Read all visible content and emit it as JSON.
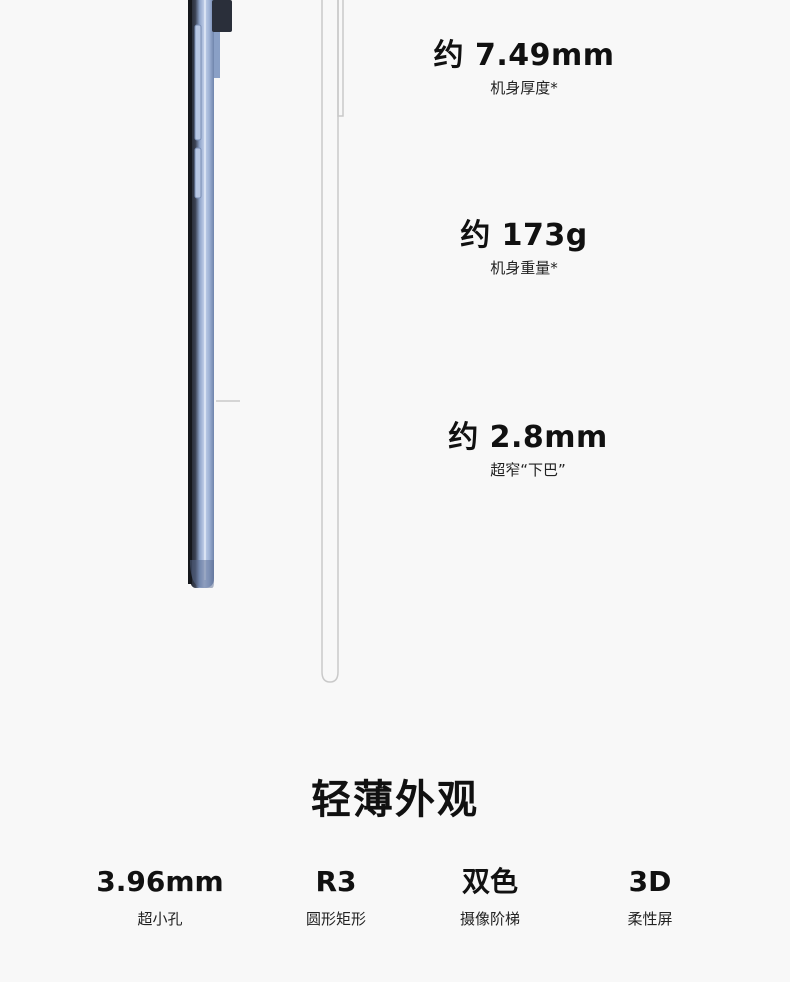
{
  "specs": [
    {
      "value": "约 7.49mm",
      "label": "机身厚度*"
    },
    {
      "value": "约 173g",
      "label": "机身重量*"
    },
    {
      "value": "约 2.8mm",
      "label": "超窄“下巴”"
    }
  ],
  "section": {
    "title": "轻薄外观"
  },
  "features": [
    {
      "value": "3.96mm",
      "label": "超小孔"
    },
    {
      "value": "R3",
      "label": "圆形矩形"
    },
    {
      "value": "双色",
      "label": "摄像阶梯"
    },
    {
      "value": "3D",
      "label": "柔性屏"
    }
  ],
  "colors": {
    "background": "#f8f8f8",
    "phone_frame": "#9fb3d6",
    "phone_edge": "#1a1d24",
    "outline": "#c9c9c9"
  }
}
